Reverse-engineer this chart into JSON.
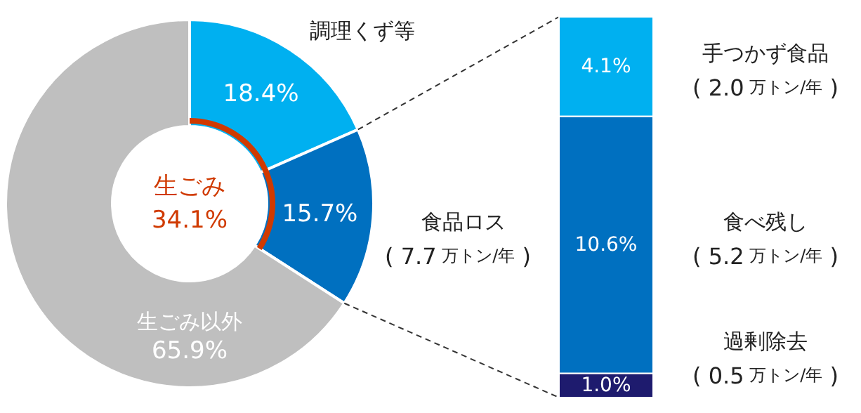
{
  "chart_data": [
    {
      "type": "donut",
      "categories": [
        "調理くず等",
        "食品ロス",
        "生ごみ以外"
      ],
      "values": [
        18.4,
        15.7,
        65.9
      ],
      "colors": [
        "#00b0f0",
        "#0070c0",
        "#bfbfbf"
      ],
      "value_labels": [
        "18.4%",
        "15.7%",
        "65.9%"
      ],
      "annotations": [
        "生ごみ",
        "34.1%",
        "( 7.7 万トン/年 )"
      ]
    },
    {
      "type": "bar",
      "stacked": true,
      "categories": [
        null
      ],
      "series": [
        {
          "name": "過剰除去",
          "color": "#1e1b6e",
          "values": [
            1.0
          ],
          "value_labels": [
            "1.0%"
          ]
        },
        {
          "name": "食べ残し",
          "color": "#0070c0",
          "values": [
            10.6
          ],
          "value_labels": [
            "10.6%"
          ]
        },
        {
          "name": "手つかず食品",
          "color": "#00b0f0",
          "values": [
            4.1
          ],
          "value_labels": [
            "4.1%"
          ]
        }
      ],
      "annotations": [
        "( 0.5 万トン/年 )",
        "( 5.2 万トン/年 )",
        "( 2.0 万トン/年 )"
      ]
    }
  ]
}
